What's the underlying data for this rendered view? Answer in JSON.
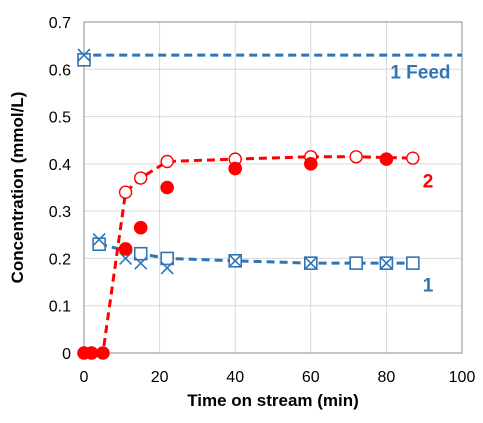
{
  "chart_data": {
    "type": "scatter",
    "xlabel": "Time on stream (min)",
    "ylabel": "Concentration (mmol/L)",
    "xlim": [
      0,
      100
    ],
    "ylim": [
      0,
      0.7
    ],
    "xticks": [
      0,
      20,
      40,
      60,
      80,
      100
    ],
    "yticks": [
      0,
      0.1,
      0.2,
      0.3,
      0.4,
      0.5,
      0.6,
      0.7
    ],
    "grid": true,
    "colors": {
      "blue": "#2E75B6",
      "red": "#FF0000"
    },
    "series": [
      {
        "key": "feed",
        "style": "dashed-line",
        "color": "#2E75B6",
        "x": [
          -1,
          100
        ],
        "y": [
          0.63,
          0.63
        ]
      },
      {
        "key": "s1_line",
        "style": "dashed-line",
        "color": "#2E75B6",
        "x": [
          4,
          15,
          22,
          40,
          60,
          80,
          87
        ],
        "y": [
          0.23,
          0.21,
          0.2,
          0.195,
          0.19,
          0.19,
          0.19
        ]
      },
      {
        "key": "s1_open",
        "style": "open-square",
        "color": "#2E75B6",
        "x": [
          0,
          4,
          15,
          22,
          40,
          60,
          72,
          80,
          87
        ],
        "y": [
          0.62,
          0.23,
          0.21,
          0.2,
          0.195,
          0.19,
          0.19,
          0.19,
          0.19
        ]
      },
      {
        "key": "s1_cross",
        "style": "x-marker",
        "color": "#2E75B6",
        "x": [
          0,
          4,
          11,
          15,
          22,
          40,
          60,
          80
        ],
        "y": [
          0.63,
          0.24,
          0.2,
          0.19,
          0.18,
          0.195,
          0.19,
          0.19
        ]
      },
      {
        "key": "s2_line",
        "style": "dashed-line",
        "color": "#FF0000",
        "x": [
          0,
          5,
          11,
          15,
          22,
          40,
          60,
          72,
          87
        ],
        "y": [
          0,
          0,
          0.34,
          0.37,
          0.405,
          0.41,
          0.415,
          0.415,
          0.412
        ]
      },
      {
        "key": "s2_open",
        "style": "open-circle",
        "color": "#FF0000",
        "x": [
          11,
          15,
          22,
          40,
          60,
          72,
          87
        ],
        "y": [
          0.34,
          0.37,
          0.405,
          0.41,
          0.415,
          0.415,
          0.412
        ]
      },
      {
        "key": "s2_filled",
        "style": "filled-circle",
        "color": "#FF0000",
        "x": [
          0,
          2,
          5,
          11,
          15,
          22,
          40,
          60,
          80
        ],
        "y": [
          0,
          0,
          0,
          0.22,
          0.265,
          0.35,
          0.39,
          0.4,
          0.41
        ]
      }
    ],
    "annotations": [
      {
        "text": "1 Feed",
        "x": 89,
        "y": 0.58,
        "color": "#2E75B6"
      },
      {
        "text": "2",
        "x": 91,
        "y": 0.35,
        "color": "#FF0000"
      },
      {
        "text": "1",
        "x": 91,
        "y": 0.13,
        "color": "#2E75B6"
      }
    ]
  }
}
